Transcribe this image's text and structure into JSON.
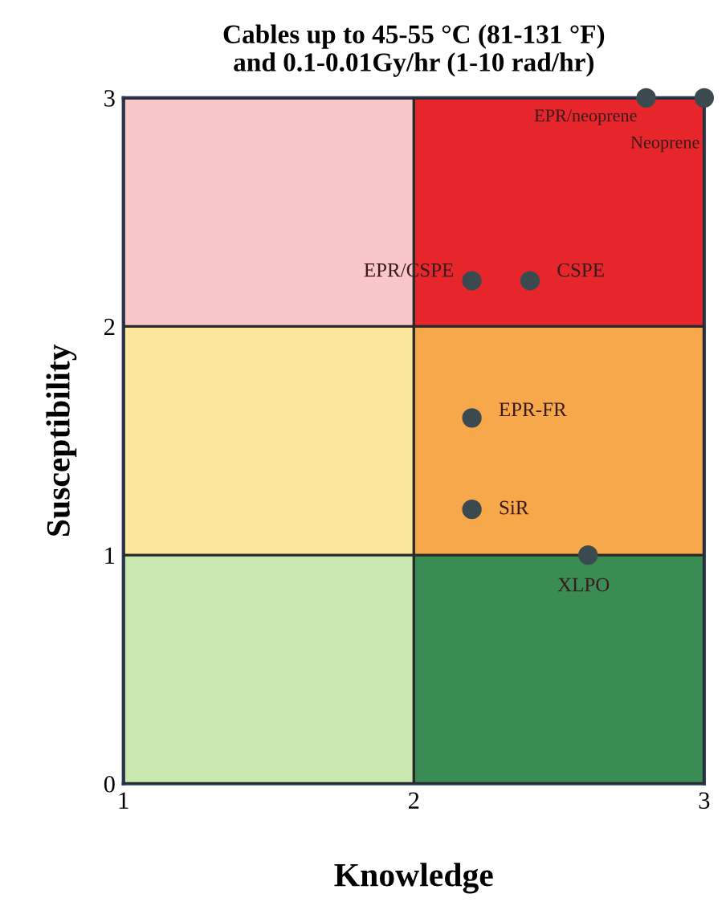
{
  "chart_data": {
    "type": "scatter",
    "title": "Cables up to 45-55 °C (81-131 °F)\nand 0.1-0.01Gy/hr (1-10 rad/hr)",
    "xlabel": "Knowledge",
    "ylabel": "Susceptibility",
    "x": [
      2.8,
      3.0,
      2.2,
      2.4,
      2.2,
      2.2,
      2.6
    ],
    "series": [
      {
        "color": "#3b4a4f",
        "values": [
          3.0,
          3.0,
          2.2,
          2.2,
          1.6,
          1.2,
          1.0
        ]
      }
    ],
    "annotations": [
      {
        "text": "EPR/neoprene",
        "x": 2.8,
        "y": 3.0
      },
      {
        "text": "Neoprene",
        "x": 3.0,
        "y": 3.0
      },
      {
        "text": "EPR/CSPE",
        "x": 2.2,
        "y": 2.2
      },
      {
        "text": "CSPE",
        "x": 2.4,
        "y": 2.2
      },
      {
        "text": "EPR-FR",
        "x": 2.2,
        "y": 1.6
      },
      {
        "text": "SiR",
        "x": 2.2,
        "y": 1.2
      },
      {
        "text": "XLPO",
        "x": 2.6,
        "y": 1.0
      }
    ],
    "xlim": [
      1,
      3
    ],
    "ylim": [
      0,
      3
    ],
    "xticks": [
      1,
      2,
      3
    ],
    "yticks": [
      0,
      1,
      2,
      3
    ],
    "grid": true,
    "marker": "circle"
  }
}
